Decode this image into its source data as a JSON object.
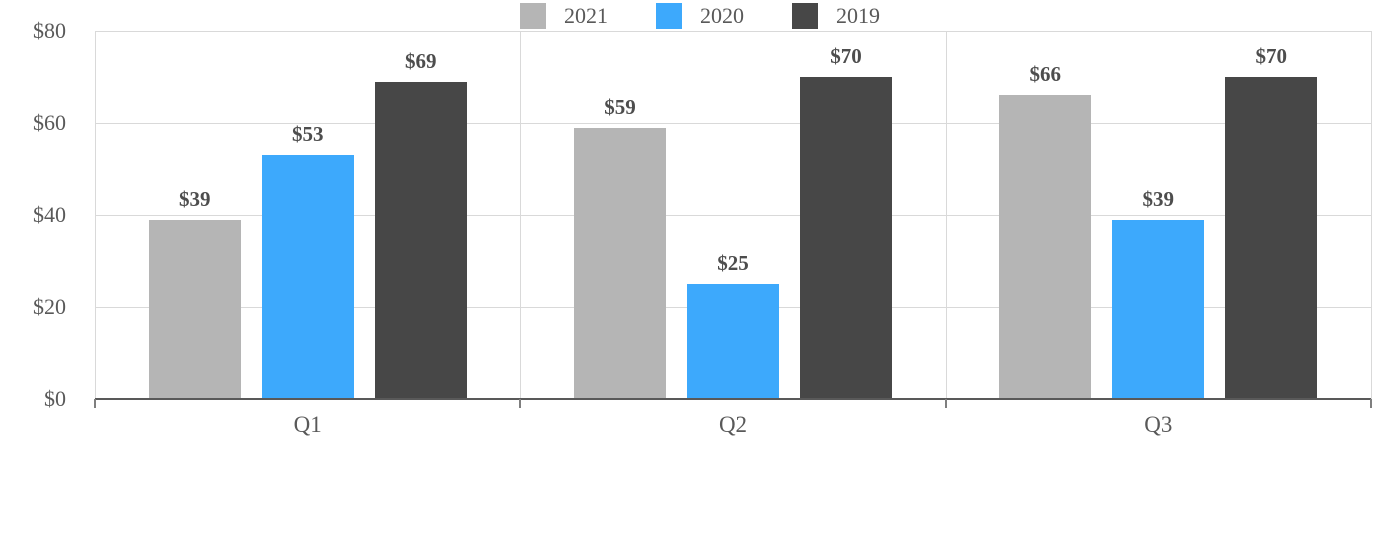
{
  "chart_data": {
    "type": "bar",
    "title": "",
    "categories": [
      "Q1",
      "Q2",
      "Q3"
    ],
    "series": [
      {
        "name": "2021",
        "color": "#b5b5b5",
        "values": [
          39,
          59,
          66
        ],
        "labels": [
          "$39",
          "$59",
          "$66"
        ]
      },
      {
        "name": "2020",
        "color": "#3da9fc",
        "values": [
          53,
          25,
          39
        ],
        "labels": [
          "$53",
          "$25",
          "$39"
        ]
      },
      {
        "name": "2019",
        "color": "#474747",
        "values": [
          69,
          70,
          70
        ],
        "labels": [
          "$69",
          "$70",
          "$70"
        ]
      }
    ],
    "y_axis": {
      "min": 0,
      "max": 80,
      "ticks": [
        {
          "value": 0,
          "label": "$0"
        },
        {
          "value": 20,
          "label": "$20"
        },
        {
          "value": 40,
          "label": "$40"
        },
        {
          "value": 60,
          "label": "$60"
        },
        {
          "value": 80,
          "label": "$80"
        }
      ]
    },
    "legend": {
      "position": "bottom",
      "entries": [
        "2021",
        "2020",
        "2019"
      ]
    },
    "grid": true,
    "colors": {
      "gridline": "#d9d9d9",
      "axis_line": "#595959",
      "axis_text": "#595959",
      "data_label_text": "#4d4d4d"
    }
  }
}
